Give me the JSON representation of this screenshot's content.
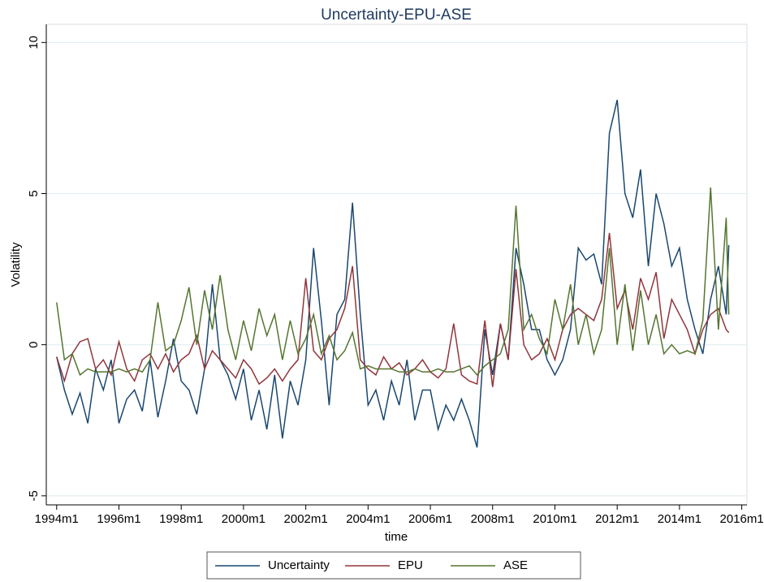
{
  "chart_data": {
    "type": "line",
    "title": "Uncertainty-EPU-ASE",
    "xlabel": "time",
    "ylabel": "Volatility",
    "x": [
      "1994m1",
      "1994m4",
      "1994m7",
      "1994m10",
      "1995m1",
      "1995m4",
      "1995m7",
      "1995m10",
      "1996m1",
      "1996m4",
      "1996m7",
      "1996m10",
      "1997m1",
      "1997m4",
      "1997m7",
      "1997m10",
      "1998m1",
      "1998m4",
      "1998m7",
      "1998m10",
      "1999m1",
      "1999m4",
      "1999m7",
      "1999m10",
      "2000m1",
      "2000m4",
      "2000m7",
      "2000m10",
      "2001m1",
      "2001m4",
      "2001m7",
      "2001m10",
      "2002m1",
      "2002m4",
      "2002m7",
      "2002m10",
      "2003m1",
      "2003m4",
      "2003m7",
      "2003m10",
      "2004m1",
      "2004m4",
      "2004m7",
      "2004m10",
      "2005m1",
      "2005m4",
      "2005m7",
      "2005m10",
      "2006m1",
      "2006m4",
      "2006m7",
      "2006m10",
      "2007m1",
      "2007m4",
      "2007m7",
      "2007m10",
      "2008m1",
      "2008m4",
      "2008m7",
      "2008m10",
      "2009m1",
      "2009m4",
      "2009m7",
      "2009m10",
      "2010m1",
      "2010m4",
      "2010m7",
      "2010m10",
      "2011m1",
      "2011m4",
      "2011m7",
      "2011m10",
      "2012m1",
      "2012m4",
      "2012m7",
      "2012m10",
      "2013m1",
      "2013m4",
      "2013m7",
      "2013m10",
      "2014m1",
      "2014m4",
      "2014m7",
      "2014m10",
      "2015m1",
      "2015m4",
      "2015m7",
      "2015m8"
    ],
    "series": [
      {
        "name": "Uncertainty",
        "color": "#1a476f",
        "values": [
          -0.4,
          -1.5,
          -2.3,
          -1.6,
          -2.6,
          -0.8,
          -1.5,
          -0.5,
          -2.6,
          -1.8,
          -1.5,
          -2.2,
          -0.5,
          -2.4,
          -1.2,
          0.2,
          -1.2,
          -1.5,
          -2.3,
          -0.8,
          2.0,
          -0.5,
          -1.0,
          -1.8,
          -0.8,
          -2.5,
          -1.5,
          -2.8,
          -1.0,
          -3.1,
          -1.2,
          -2.0,
          -0.5,
          3.2,
          0.8,
          -2.0,
          1.0,
          1.5,
          4.7,
          1.0,
          -2.0,
          -1.5,
          -2.5,
          -1.2,
          -2.0,
          -0.5,
          -2.5,
          -1.5,
          -1.5,
          -2.8,
          -2.0,
          -2.5,
          -1.8,
          -2.5,
          -3.4,
          0.5,
          -1.0,
          0.7,
          -0.5,
          3.2,
          2.0,
          0.5,
          0.5,
          -0.5,
          -1.0,
          -0.5,
          0.5,
          3.2,
          2.8,
          3.0,
          2.0,
          7.0,
          8.1,
          5.0,
          4.2,
          5.8,
          2.6,
          5.0,
          4.0,
          2.6,
          3.2,
          1.5,
          0.5,
          -0.3,
          1.5,
          2.6,
          1.0,
          3.3
        ]
      },
      {
        "name": "EPU",
        "color": "#90353b",
        "values": [
          -0.4,
          -1.2,
          -0.3,
          0.1,
          0.2,
          -0.8,
          -0.5,
          -1.0,
          0.1,
          -0.8,
          -1.2,
          -0.5,
          -0.3,
          -0.8,
          -0.3,
          -0.9,
          -0.5,
          -0.3,
          0.3,
          -0.8,
          -0.2,
          -0.5,
          -0.8,
          -1.1,
          -0.5,
          -0.8,
          -1.3,
          -1.1,
          -0.8,
          -1.2,
          -0.8,
          -0.5,
          2.2,
          -0.2,
          -0.5,
          0.2,
          0.5,
          1.2,
          2.6,
          -0.5,
          -0.8,
          -1.0,
          -0.4,
          -0.8,
          -0.6,
          -1.0,
          -0.8,
          -0.5,
          -0.9,
          -1.1,
          -0.8,
          0.7,
          -1.0,
          -1.2,
          -1.3,
          0.8,
          -1.4,
          0.7,
          -0.5,
          2.5,
          0.0,
          -0.5,
          -0.3,
          0.2,
          -0.5,
          0.5,
          1.0,
          1.2,
          1.0,
          0.8,
          1.5,
          3.7,
          1.2,
          1.8,
          0.5,
          2.2,
          1.5,
          2.4,
          0.2,
          1.5,
          1.0,
          0.5,
          -0.3,
          0.5,
          1.0,
          1.2,
          0.5,
          0.4
        ]
      },
      {
        "name": "ASE",
        "color": "#55752f",
        "values": [
          1.4,
          -0.5,
          -0.3,
          -1.0,
          -0.8,
          -0.9,
          -0.9,
          -0.9,
          -0.8,
          -0.9,
          -0.8,
          -0.9,
          -0.5,
          1.4,
          -0.2,
          0.0,
          0.8,
          1.9,
          0.0,
          1.8,
          0.5,
          2.3,
          0.5,
          -0.5,
          0.8,
          -0.2,
          1.2,
          0.3,
          1.0,
          -0.5,
          0.8,
          -0.3,
          0.2,
          1.0,
          -0.3,
          0.3,
          -0.5,
          -0.2,
          0.4,
          -0.8,
          -0.7,
          -0.8,
          -0.8,
          -0.8,
          -0.9,
          -0.9,
          -0.8,
          -0.9,
          -0.9,
          -0.8,
          -0.9,
          -0.9,
          -0.8,
          -0.7,
          -1.0,
          -0.7,
          -0.5,
          -0.3,
          0.5,
          4.6,
          0.5,
          1.0,
          0.2,
          -0.3,
          1.5,
          0.5,
          2.0,
          0.0,
          1.0,
          -0.3,
          0.5,
          3.2,
          0.0,
          2.0,
          -0.2,
          1.8,
          0.0,
          1.0,
          -0.3,
          0.0,
          -0.3,
          -0.2,
          -0.3,
          0.8,
          5.2,
          0.5,
          4.2,
          1.0
        ]
      }
    ],
    "xlim": [
      "1993m9",
      "2016m3"
    ],
    "xticks": [
      "1994m1",
      "1996m1",
      "1998m1",
      "2000m1",
      "2002m1",
      "2004m1",
      "2006m1",
      "2008m1",
      "2010m1",
      "2012m1",
      "2014m1",
      "2016m1"
    ],
    "ylim": [
      -5.3,
      10.6
    ],
    "yticks": [
      -5,
      0,
      5,
      10
    ],
    "grid": true,
    "legend": "bottom"
  }
}
